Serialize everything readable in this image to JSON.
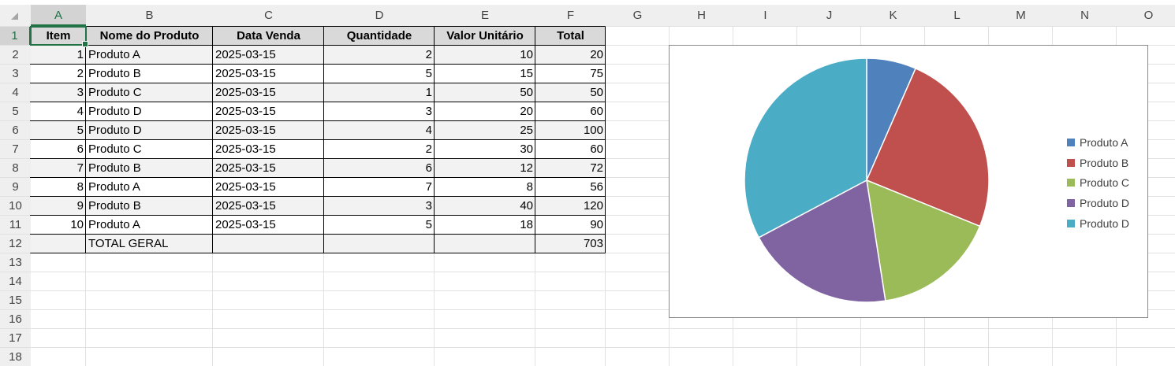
{
  "columns": [
    "A",
    "B",
    "C",
    "D",
    "E",
    "F",
    "G",
    "H",
    "I",
    "J",
    "K",
    "L",
    "M",
    "N",
    "O"
  ],
  "rows": [
    "1",
    "2",
    "3",
    "4",
    "5",
    "6",
    "7",
    "8",
    "9",
    "10",
    "11",
    "12",
    "13",
    "14",
    "15",
    "16",
    "17",
    "18"
  ],
  "selected_cell": "A1",
  "table": {
    "headers": [
      "Item",
      "Nome do Produto",
      "Data Venda",
      "Quantidade",
      "Valor Unitário",
      "Total"
    ],
    "rows": [
      [
        "1",
        "Produto A",
        "2025-03-15",
        "2",
        "10",
        "20"
      ],
      [
        "2",
        "Produto B",
        "2025-03-15",
        "5",
        "15",
        "75"
      ],
      [
        "3",
        "Produto C",
        "2025-03-15",
        "1",
        "50",
        "50"
      ],
      [
        "4",
        "Produto D",
        "2025-03-15",
        "3",
        "20",
        "60"
      ],
      [
        "5",
        "Produto D",
        "2025-03-15",
        "4",
        "25",
        "100"
      ],
      [
        "6",
        "Produto C",
        "2025-03-15",
        "2",
        "30",
        "60"
      ],
      [
        "7",
        "Produto B",
        "2025-03-15",
        "6",
        "12",
        "72"
      ],
      [
        "8",
        "Produto A",
        "2025-03-15",
        "7",
        "8",
        "56"
      ],
      [
        "9",
        "Produto B",
        "2025-03-15",
        "3",
        "40",
        "120"
      ],
      [
        "10",
        "Produto A",
        "2025-03-15",
        "5",
        "18",
        "90"
      ]
    ],
    "total_row": [
      "",
      "TOTAL GERAL",
      "",
      "",
      "",
      "703"
    ]
  },
  "colors": {
    "header_fill": "#d9d9d9",
    "stripe_fill": "#f2f2f2",
    "selection": "#217346",
    "gridline": "#e1e1e1"
  },
  "chart_data": {
    "type": "pie",
    "categories": [
      "Produto A",
      "Produto B",
      "Produto C",
      "Produto D",
      "Produto D"
    ],
    "values": [
      20,
      75,
      50,
      60,
      100
    ],
    "colors": [
      "#4f81bd",
      "#c0504d",
      "#9bbb59",
      "#8064a2",
      "#4bacc6"
    ],
    "legend_position": "right",
    "title": ""
  }
}
